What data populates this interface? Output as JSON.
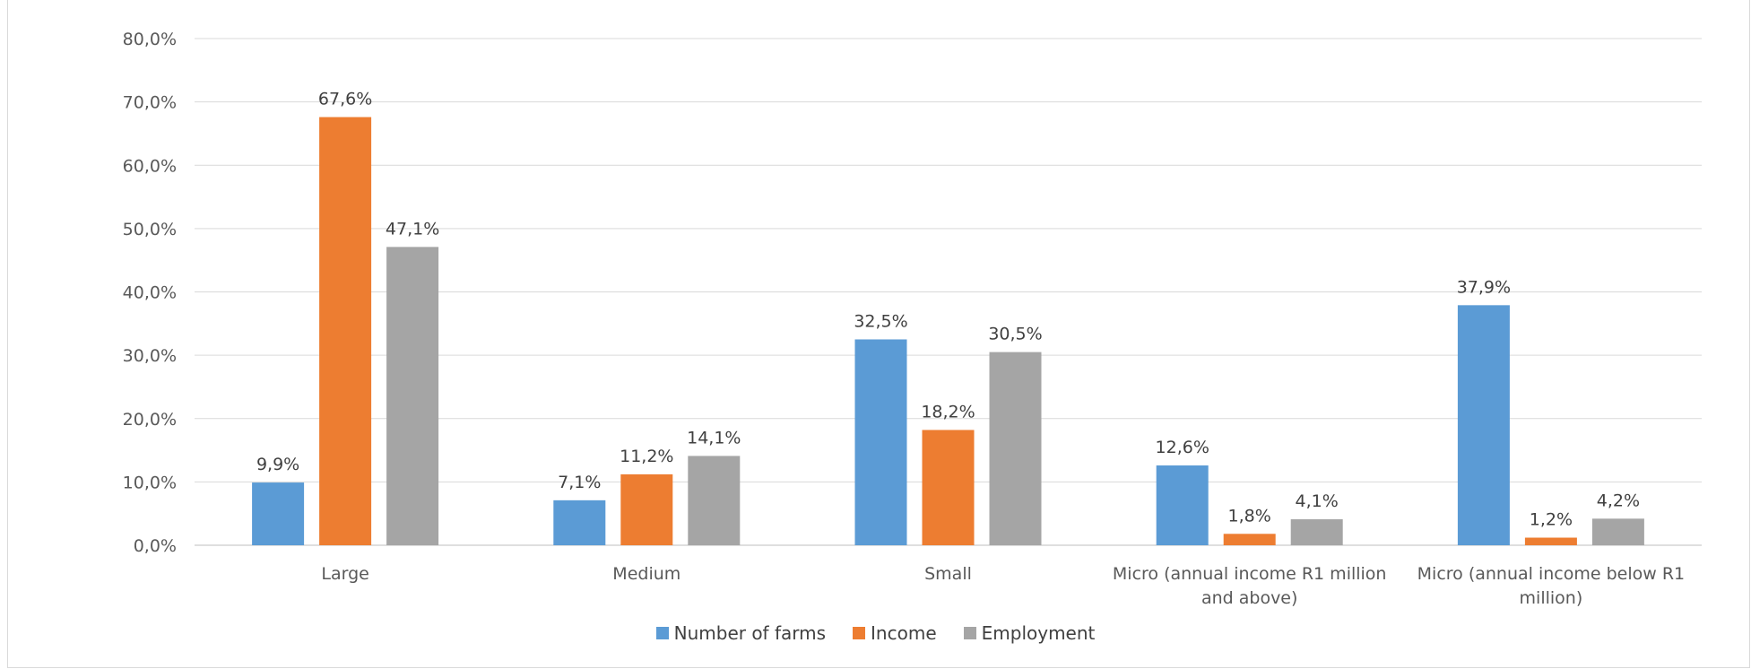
{
  "chart_data": {
    "type": "bar",
    "categories": [
      "Large",
      "Medium",
      "Small",
      "Micro (annual income R1 million and above)",
      "Micro (annual income below R1 million)"
    ],
    "category_lines": [
      [
        "Large"
      ],
      [
        "Medium"
      ],
      [
        "Small"
      ],
      [
        "Micro (annual income R1 million",
        "and above)"
      ],
      [
        "Micro (annual income below R1",
        "million)"
      ]
    ],
    "series": [
      {
        "name": "Number of farms",
        "color": "#5B9BD5",
        "values": [
          9.9,
          7.1,
          32.5,
          12.6,
          37.9
        ],
        "labels": [
          "9,9%",
          "7,1%",
          "32,5%",
          "12,6%",
          "37,9%"
        ]
      },
      {
        "name": "Income",
        "color": "#ED7D31",
        "values": [
          67.6,
          11.2,
          18.2,
          1.8,
          1.2
        ],
        "labels": [
          "67,6%",
          "11,2%",
          "18,2%",
          "1,8%",
          "1,2%"
        ]
      },
      {
        "name": "Employment",
        "color": "#A5A5A5",
        "values": [
          47.1,
          14.1,
          30.5,
          4.1,
          4.2
        ],
        "labels": [
          "47,1%",
          "14,1%",
          "30,5%",
          "4,1%",
          "4,2%"
        ]
      }
    ],
    "ylim": [
      0,
      80
    ],
    "yticks": [
      0,
      10,
      20,
      30,
      40,
      50,
      60,
      70,
      80
    ],
    "ytick_labels": [
      "0,0%",
      "10,0%",
      "20,0%",
      "30,0%",
      "40,0%",
      "50,0%",
      "60,0%",
      "70,0%",
      "80,0%"
    ],
    "grid": true,
    "legend_position": "bottom"
  }
}
